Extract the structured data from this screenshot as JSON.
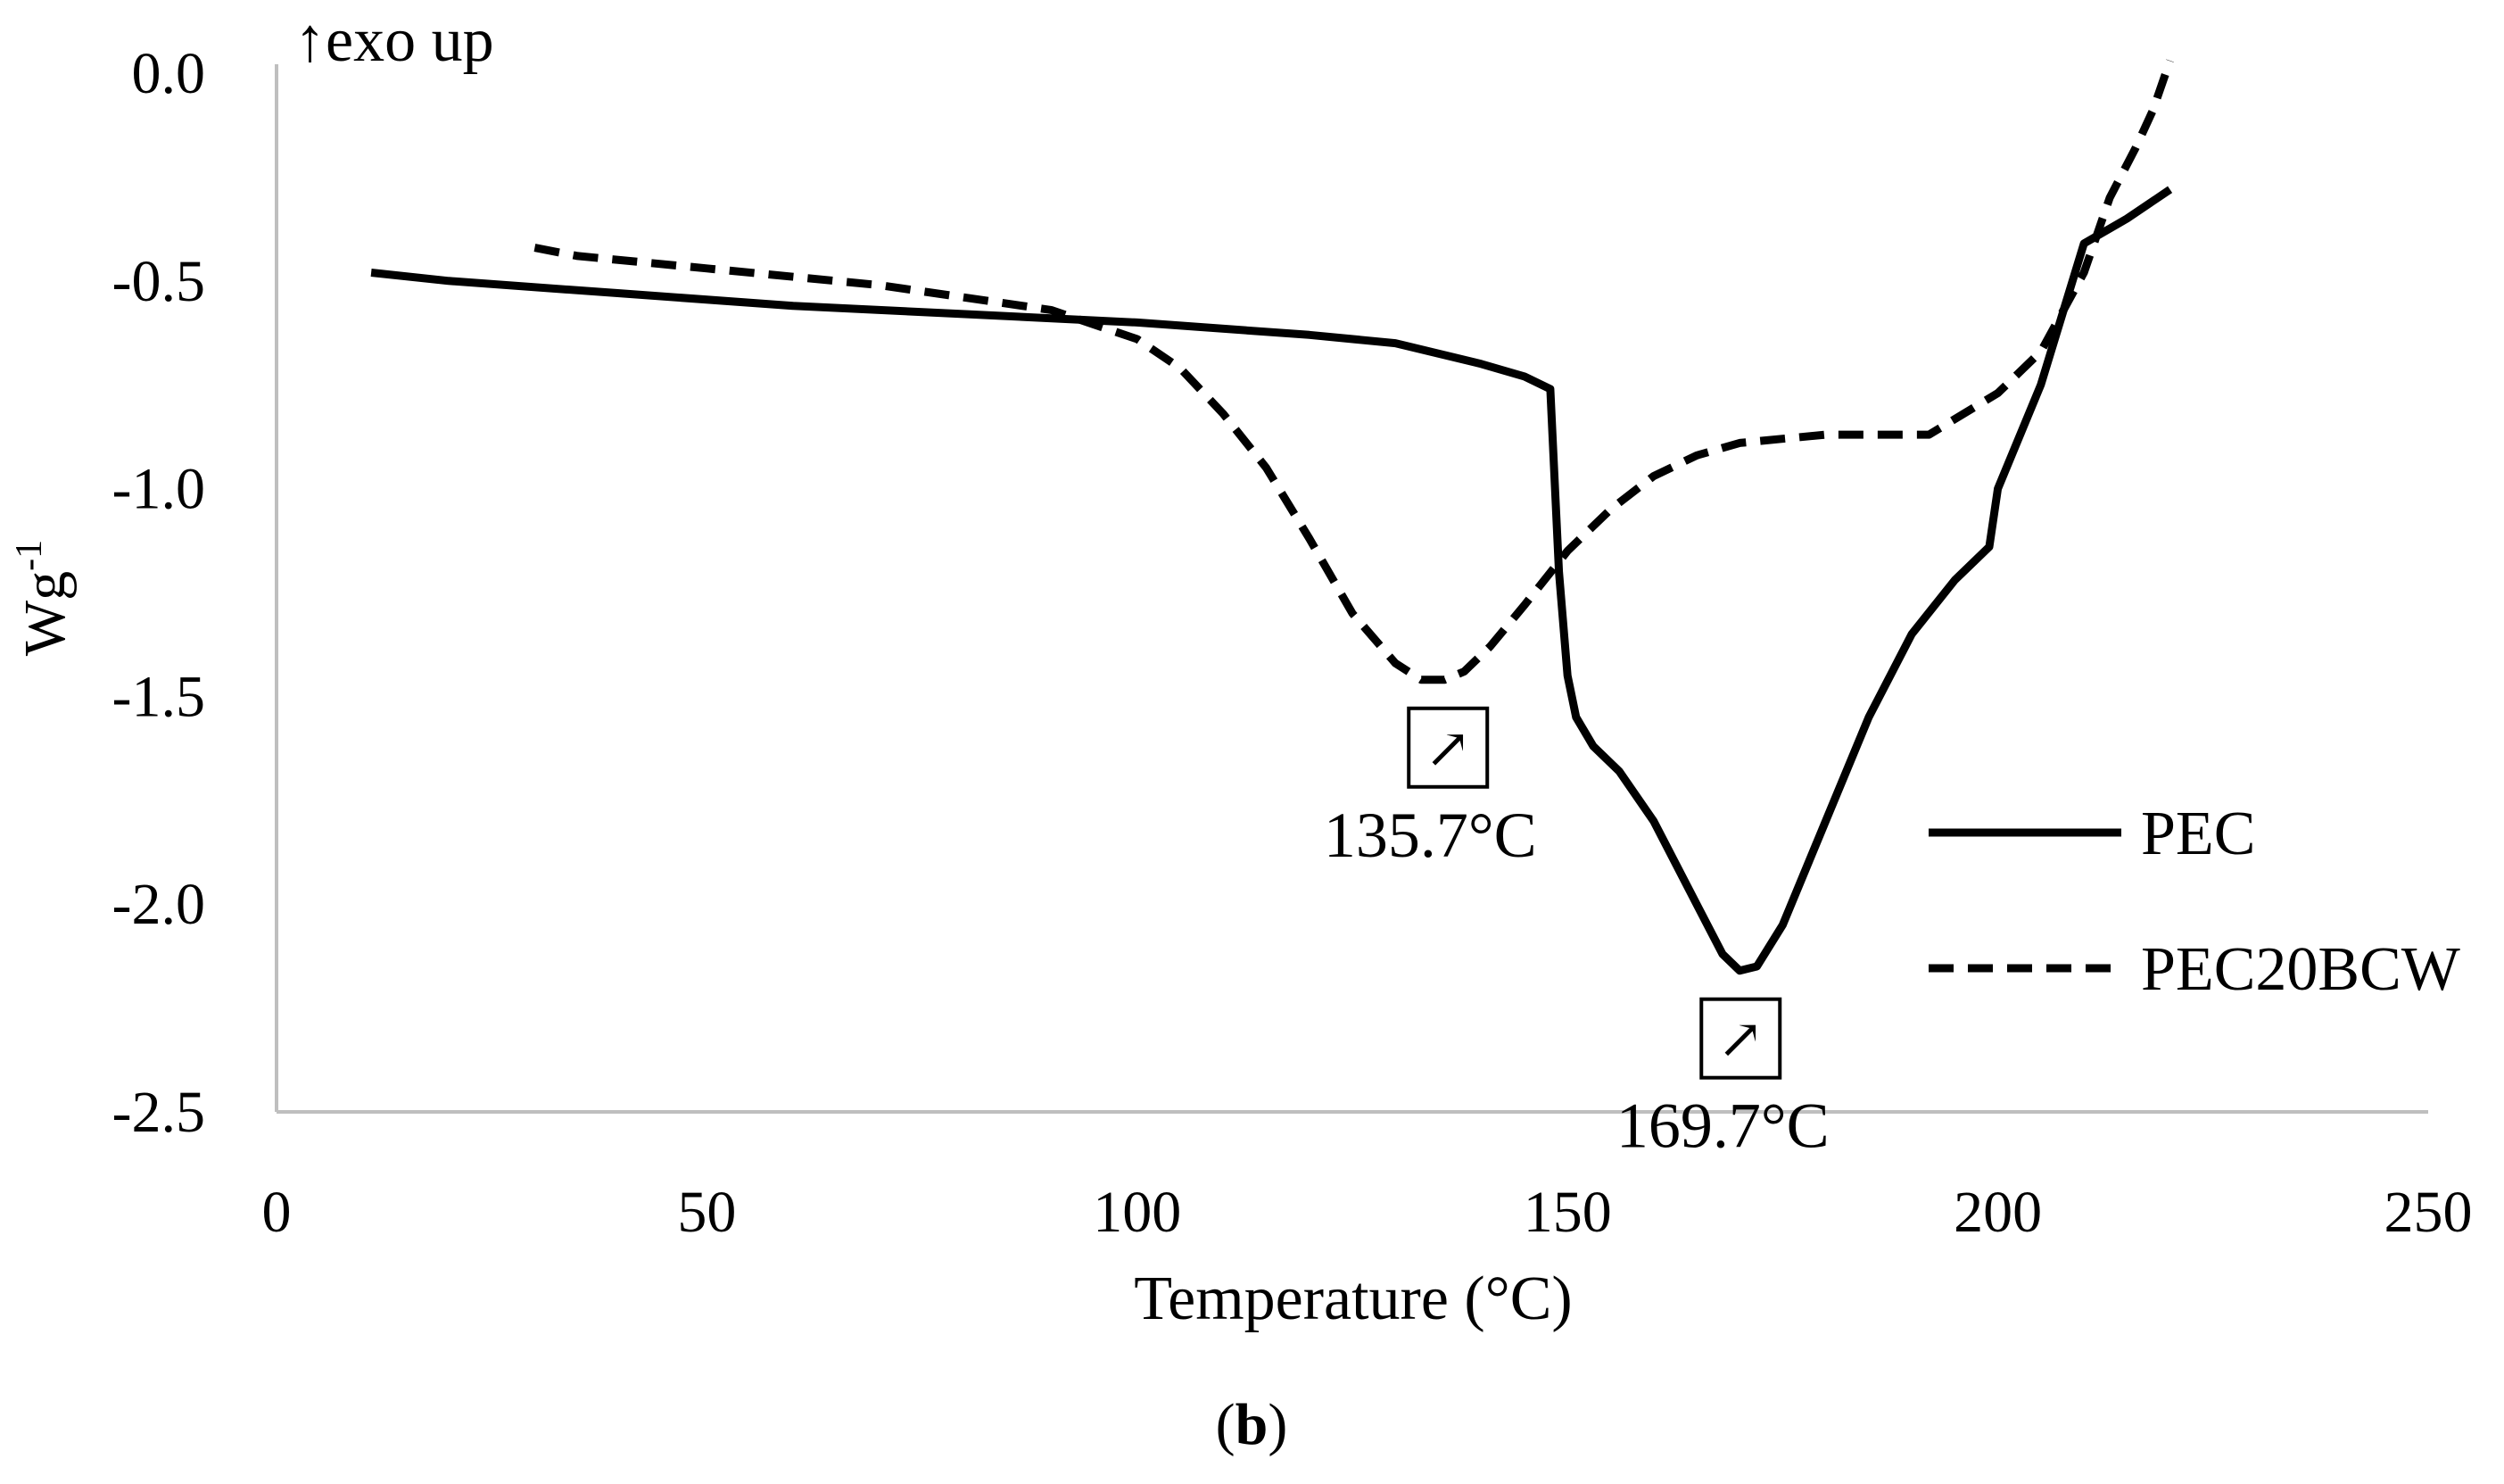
{
  "chart_data": {
    "type": "line",
    "panel_label": "(b)",
    "panel_label_letter": "b",
    "panel_label_open": "(",
    "panel_label_close": ")",
    "exo_label": "↑exo up",
    "xlabel": "Temperature (°C)",
    "ylabel_base": "Wg",
    "ylabel_sup": "-1",
    "xlim": [
      0,
      250
    ],
    "ylim": [
      -2.5,
      0
    ],
    "xticks": [
      0,
      50,
      100,
      150,
      200,
      250
    ],
    "xtick_labels": [
      "0",
      "50",
      "100",
      "150",
      "200",
      "250"
    ],
    "yticks": [
      0,
      -0.5,
      -1,
      -1.5,
      -2,
      -2.5
    ],
    "ytick_labels": [
      "0.0",
      "-0.5",
      "-1.0",
      "-1.5",
      "-2.0",
      "-2.5"
    ],
    "series": [
      {
        "name": "PEC",
        "style": "solid",
        "color": "#000000",
        "x": [
          11,
          20,
          40,
          60,
          80,
          100,
          120,
          130,
          140,
          145,
          148,
          149,
          150,
          151,
          153,
          156,
          160,
          165,
          168,
          170,
          172,
          175,
          180,
          185,
          190,
          195,
          199,
          200,
          205,
          210,
          215,
          220
        ],
        "y": [
          -0.48,
          -0.5,
          -0.53,
          -0.56,
          -0.58,
          -0.6,
          -0.63,
          -0.65,
          -0.7,
          -0.73,
          -0.76,
          -1.2,
          -1.45,
          -1.55,
          -1.62,
          -1.68,
          -1.8,
          -2.0,
          -2.12,
          -2.16,
          -2.15,
          -2.05,
          -1.8,
          -1.55,
          -1.35,
          -1.22,
          -1.14,
          -1.0,
          -0.75,
          -0.41,
          -0.35,
          -0.28
        ]
      },
      {
        "name": "PEC20BCW",
        "style": "dashed",
        "color": "#000000",
        "x": [
          30,
          35,
          50,
          70,
          90,
          100,
          105,
          110,
          115,
          120,
          125,
          130,
          133,
          135.7,
          138,
          141,
          145,
          150,
          155,
          160,
          165,
          170,
          175,
          180,
          185,
          192,
          200,
          205,
          210,
          213,
          216,
          218,
          220
        ],
        "y": [
          -0.42,
          -0.44,
          -0.47,
          -0.51,
          -0.57,
          -0.64,
          -0.71,
          -0.82,
          -0.95,
          -1.12,
          -1.3,
          -1.42,
          -1.46,
          -1.46,
          -1.44,
          -1.38,
          -1.28,
          -1.15,
          -1.05,
          -0.97,
          -0.92,
          -0.89,
          -0.88,
          -0.87,
          -0.87,
          -0.87,
          -0.77,
          -0.67,
          -0.48,
          -0.3,
          -0.18,
          -0.09,
          0.03
        ]
      }
    ],
    "annotations": [
      {
        "label": "135.7°C",
        "x": 135.7,
        "y": -1.46,
        "marker": "↗"
      },
      {
        "label": "169.7°C",
        "x": 169.7,
        "y": -2.16,
        "marker": "↗"
      }
    ],
    "legend_position": "right",
    "grid": false
  }
}
